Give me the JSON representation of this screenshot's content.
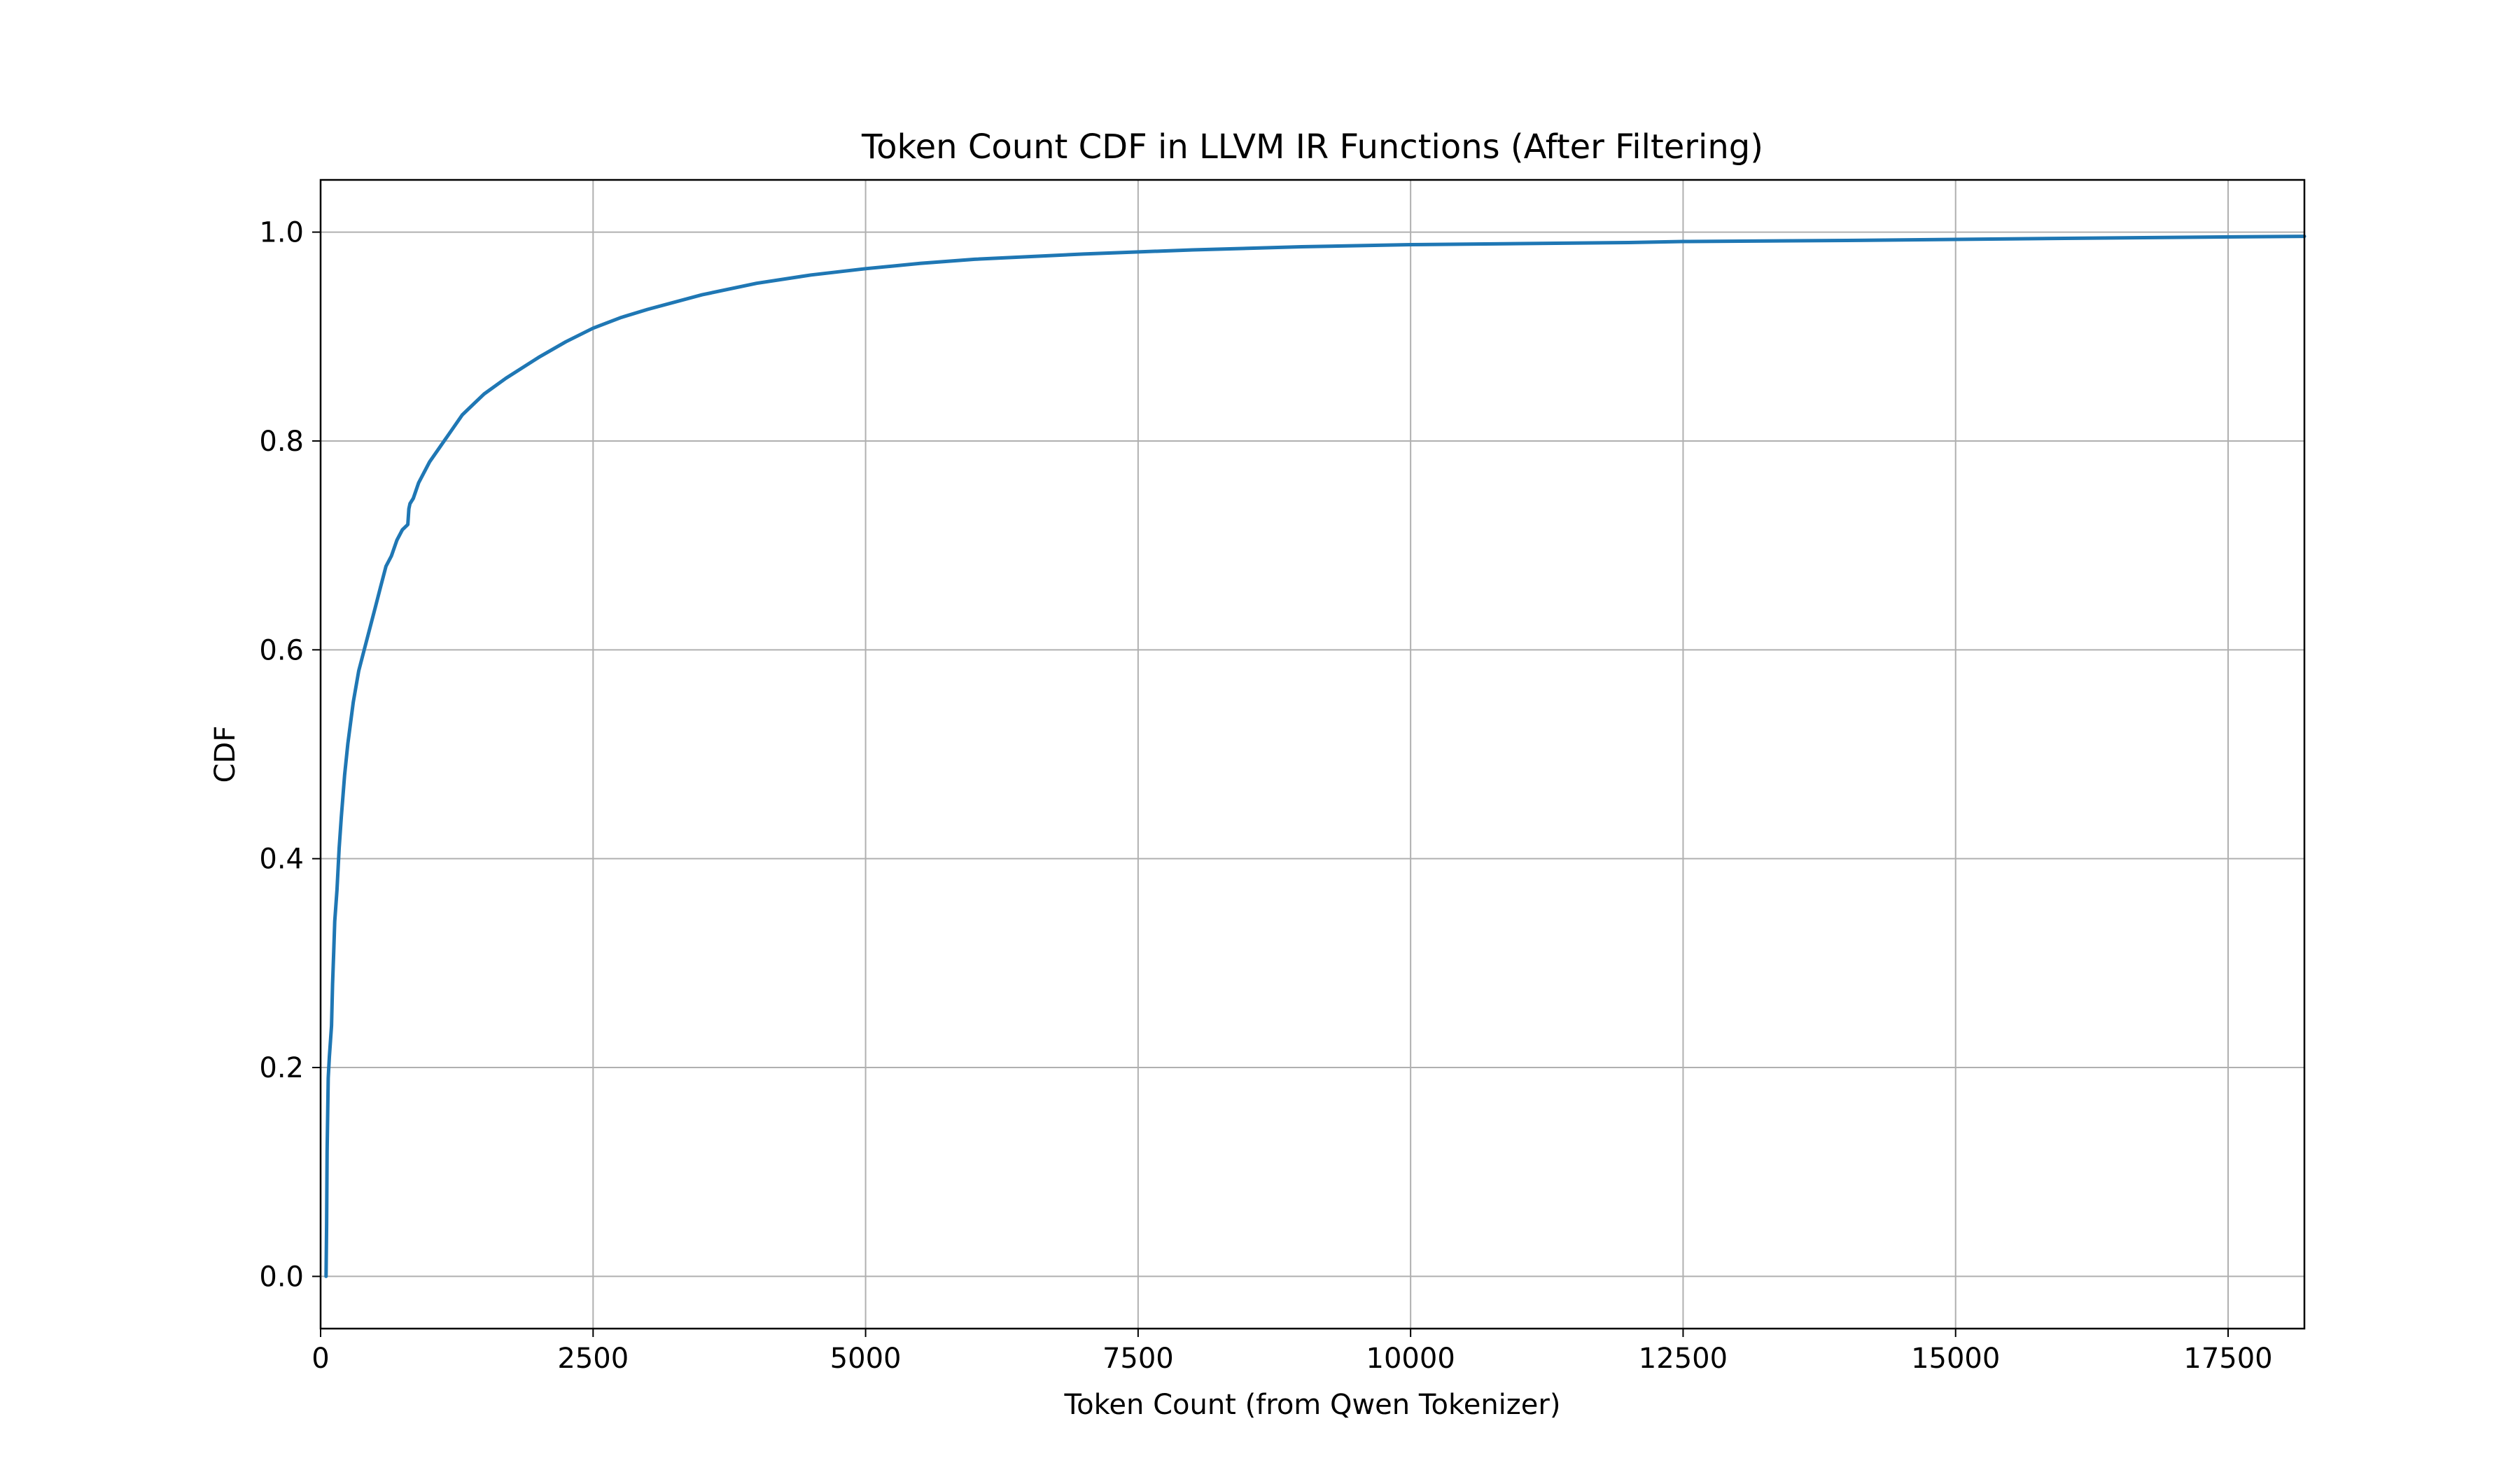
{
  "chart_data": {
    "type": "line",
    "title": "Token Count CDF in LLVM IR Functions (After Filtering)",
    "xlabel": "Token Count (from Qwen Tokenizer)",
    "ylabel": "CDF",
    "xlim": [
      0,
      18200
    ],
    "ylim": [
      -0.05,
      1.05
    ],
    "grid": true,
    "xticks": [
      0,
      2500,
      5000,
      7500,
      10000,
      12500,
      15000,
      17500
    ],
    "xtick_labels": [
      "0",
      "2500",
      "5000",
      "7500",
      "10000",
      "12500",
      "15000",
      "17500"
    ],
    "yticks": [
      0.0,
      0.2,
      0.4,
      0.6,
      0.8,
      1.0
    ],
    "ytick_labels": [
      "0.0",
      "0.2",
      "0.4",
      "0.6",
      "0.8",
      "1.0"
    ],
    "line_color": "#1f77b4",
    "series": [
      {
        "x": [
          50,
          55,
          60,
          70,
          80,
          100,
          110,
          120,
          130,
          150,
          170,
          190,
          220,
          250,
          300,
          350,
          400,
          450,
          500,
          550,
          600,
          650,
          700,
          750,
          800,
          810,
          820,
          850,
          900,
          1000,
          1100,
          1200,
          1300,
          1400,
          1500,
          1700,
          2000,
          2250,
          2500,
          2750,
          3000,
          3500,
          4000,
          4500,
          5000,
          5500,
          6000,
          7000,
          7500,
          8000,
          9000,
          10000,
          11000,
          12000,
          12500,
          14000,
          15000,
          16000,
          17000,
          18200
        ],
        "y": [
          0.0,
          0.05,
          0.12,
          0.19,
          0.21,
          0.24,
          0.28,
          0.31,
          0.34,
          0.37,
          0.41,
          0.44,
          0.48,
          0.51,
          0.55,
          0.58,
          0.6,
          0.62,
          0.64,
          0.66,
          0.68,
          0.69,
          0.705,
          0.715,
          0.72,
          0.735,
          0.74,
          0.745,
          0.76,
          0.78,
          0.795,
          0.81,
          0.825,
          0.835,
          0.845,
          0.86,
          0.88,
          0.895,
          0.908,
          0.918,
          0.926,
          0.94,
          0.951,
          0.959,
          0.965,
          0.97,
          0.974,
          0.979,
          0.981,
          0.983,
          0.986,
          0.988,
          0.989,
          0.99,
          0.991,
          0.992,
          0.993,
          0.994,
          0.995,
          0.996
        ]
      }
    ]
  }
}
